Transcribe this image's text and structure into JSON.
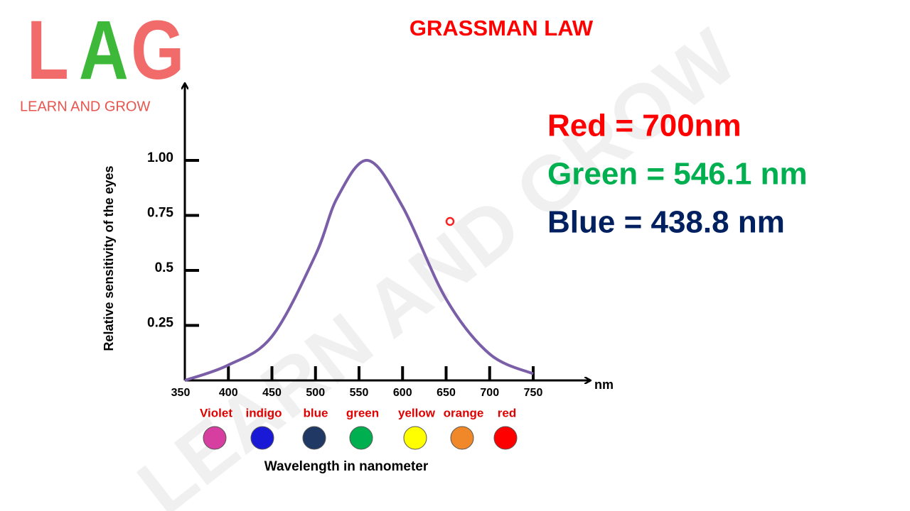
{
  "logo": {
    "letters": [
      {
        "text": "L",
        "color": "#f26b6b"
      },
      {
        "text": "A",
        "color": "#3db839"
      },
      {
        "text": "G",
        "color": "#f26b6b"
      }
    ],
    "tagline": "LEARN AND GROW"
  },
  "watermark": "LEARN AND GROW",
  "chart_data": {
    "type": "line",
    "title": "GRASSMAN LAW",
    "y_label": "Relative sensitivity of the eyes",
    "x_unit": "nm",
    "x_label": "Wavelength in nanometer",
    "x": [
      350,
      400,
      450,
      500,
      525,
      560,
      600,
      650,
      700,
      750
    ],
    "values": [
      0,
      0.07,
      0.2,
      0.57,
      0.83,
      1.0,
      0.79,
      0.37,
      0.12,
      0.03
    ],
    "color": "#7b5ea8",
    "xlim": [
      350,
      815
    ],
    "xticks": [
      350,
      400,
      450,
      500,
      550,
      600,
      650,
      700,
      750
    ],
    "ylim": [
      0,
      1.34
    ],
    "yticks": [
      {
        "value": 0.25,
        "label": "0.25"
      },
      {
        "value": 0.5,
        "label": "0.5"
      },
      {
        "value": 0.75,
        "label": "0.75"
      },
      {
        "value": 1,
        "label": "1.00"
      }
    ],
    "color_bands": [
      {
        "name": "Violet",
        "color": "#d63fa0"
      },
      {
        "name": "indigo",
        "color": "#1a1ad6"
      },
      {
        "name": "blue",
        "color": "#1f3864"
      },
      {
        "name": "green",
        "color": "#00b050"
      },
      {
        "name": "yellow",
        "color": "#ffff00"
      },
      {
        "name": "orange",
        "color": "#f0882a"
      },
      {
        "name": "red",
        "color": "#ff0000"
      }
    ]
  },
  "notes": [
    {
      "text": "Red = 700nm",
      "color": "#ff0000"
    },
    {
      "text": "Green = 546.1 nm",
      "color": "#00b050"
    },
    {
      "text": "Blue = 438.8 nm",
      "color": "#002060"
    }
  ]
}
